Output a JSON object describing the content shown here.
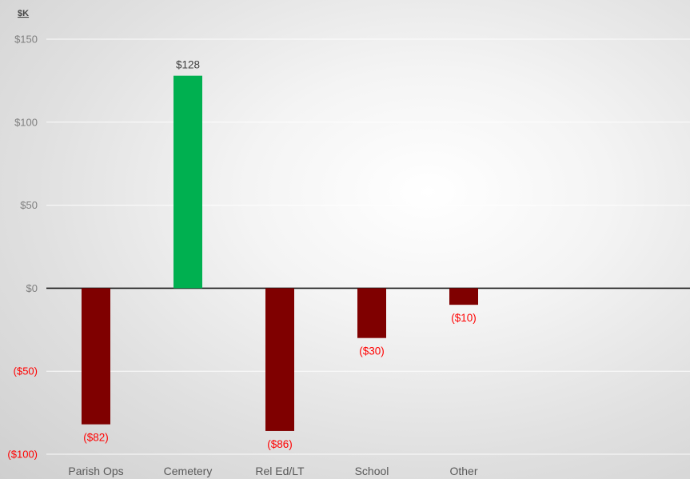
{
  "chart_data": {
    "type": "bar",
    "ylabel": "$K",
    "categories": [
      "Parish Ops",
      "Cemetery",
      "Rel Ed/LT",
      "School",
      "Other"
    ],
    "values": [
      -82,
      128,
      -86,
      -30,
      -10
    ],
    "value_labels": [
      "($82)",
      "$128",
      "($86)",
      "($30)",
      "($10)"
    ],
    "ylim": [
      -100,
      150
    ],
    "yticks": [
      150,
      100,
      50,
      0,
      -50,
      -100
    ],
    "ytick_labels": [
      "$150",
      "$100",
      "$50",
      "$0",
      "($50)",
      "($100)"
    ],
    "grid": true,
    "colors": {
      "positive": "#00b050",
      "negative": "#7f0000",
      "negative_text": "#ff0000",
      "positive_text": "#404040",
      "tick_text": "#7f7f7f"
    }
  }
}
